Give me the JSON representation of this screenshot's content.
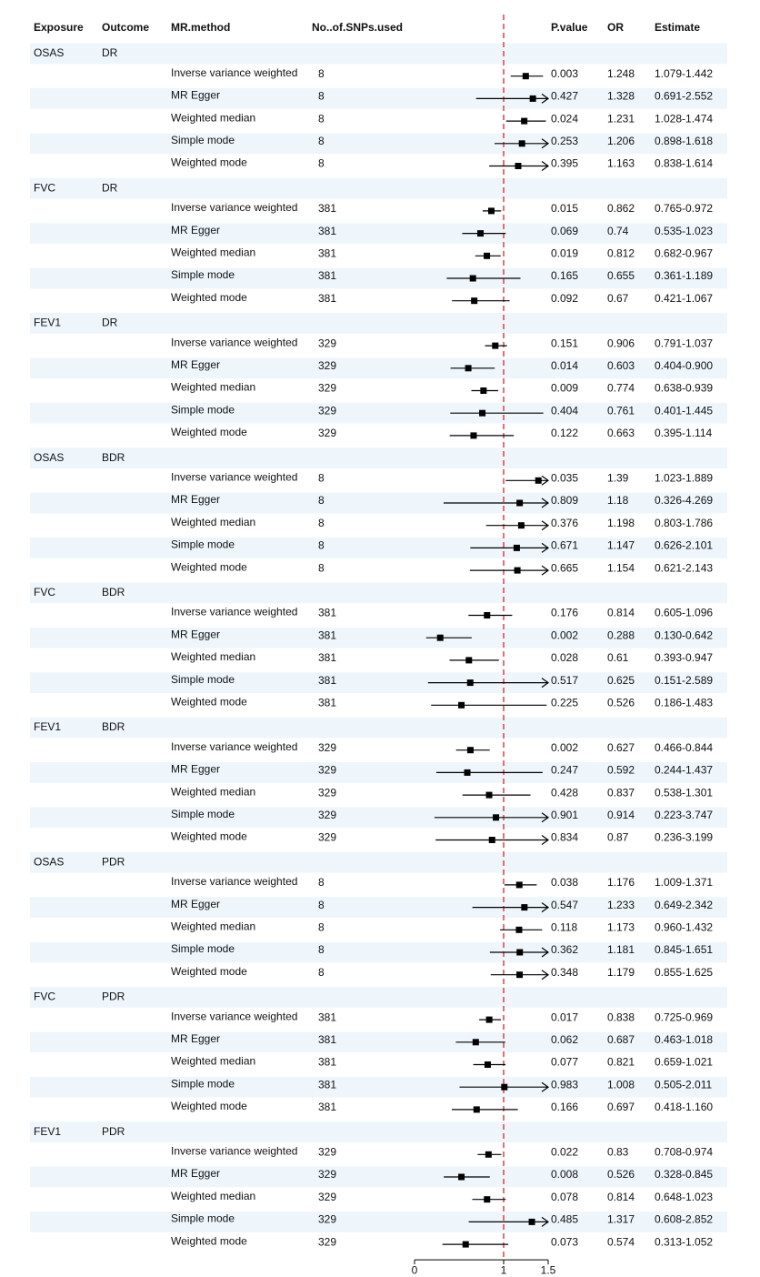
{
  "chart_data": {
    "type": "forest",
    "columns": [
      "Exposure",
      "Outcome",
      "MR.method",
      "No..of.SNPs.used",
      "P.value",
      "OR",
      "Estimate"
    ],
    "axis": {
      "xlim": [
        0,
        1.5
      ],
      "ticks": [
        0,
        1,
        1.5
      ],
      "tick_labels": [
        "0",
        "1",
        "1.5"
      ],
      "reference_line": 1
    },
    "groups": [
      {
        "exposure": "OSAS",
        "outcome": "DR",
        "rows": [
          {
            "method": "Inverse variance weighted",
            "snps": "8",
            "p": "0.003",
            "or": 1.248,
            "ci": "1.079-1.442",
            "lo": 1.079,
            "hi": 1.442
          },
          {
            "method": "MR Egger",
            "snps": "8",
            "p": "0.427",
            "or": 1.328,
            "ci": "0.691-2.552",
            "lo": 0.691,
            "hi": 2.552
          },
          {
            "method": "Weighted median",
            "snps": "8",
            "p": "0.024",
            "or": 1.231,
            "ci": "1.028-1.474",
            "lo": 1.028,
            "hi": 1.474
          },
          {
            "method": "Simple mode",
            "snps": "8",
            "p": "0.253",
            "or": 1.206,
            "ci": "0.898-1.618",
            "lo": 0.898,
            "hi": 1.618
          },
          {
            "method": "Weighted mode",
            "snps": "8",
            "p": "0.395",
            "or": 1.163,
            "ci": "0.838-1.614",
            "lo": 0.838,
            "hi": 1.614
          }
        ]
      },
      {
        "exposure": "FVC",
        "outcome": "DR",
        "rows": [
          {
            "method": "Inverse variance weighted",
            "snps": "381",
            "p": "0.015",
            "or": 0.862,
            "ci": "0.765-0.972",
            "lo": 0.765,
            "hi": 0.972
          },
          {
            "method": "MR Egger",
            "snps": "381",
            "p": "0.069",
            "or": 0.74,
            "ci": "0.535-1.023",
            "lo": 0.535,
            "hi": 1.023
          },
          {
            "method": "Weighted median",
            "snps": "381",
            "p": "0.019",
            "or": 0.812,
            "ci": "0.682-0.967",
            "lo": 0.682,
            "hi": 0.967
          },
          {
            "method": "Simple mode",
            "snps": "381",
            "p": "0.165",
            "or": 0.655,
            "ci": "0.361-1.189",
            "lo": 0.361,
            "hi": 1.189
          },
          {
            "method": "Weighted mode",
            "snps": "381",
            "p": "0.092",
            "or": 0.67,
            "ci": "0.421-1.067",
            "lo": 0.421,
            "hi": 1.067
          }
        ]
      },
      {
        "exposure": "FEV1",
        "outcome": "DR",
        "rows": [
          {
            "method": "Inverse variance weighted",
            "snps": "329",
            "p": "0.151",
            "or": 0.906,
            "ci": "0.791-1.037",
            "lo": 0.791,
            "hi": 1.037
          },
          {
            "method": "MR Egger",
            "snps": "329",
            "p": "0.014",
            "or": 0.603,
            "ci": "0.404-0.900",
            "lo": 0.404,
            "hi": 0.9
          },
          {
            "method": "Weighted median",
            "snps": "329",
            "p": "0.009",
            "or": 0.774,
            "ci": "0.638-0.939",
            "lo": 0.638,
            "hi": 0.939
          },
          {
            "method": "Simple mode",
            "snps": "329",
            "p": "0.404",
            "or": 0.761,
            "ci": "0.401-1.445",
            "lo": 0.401,
            "hi": 1.445
          },
          {
            "method": "Weighted mode",
            "snps": "329",
            "p": "0.122",
            "or": 0.663,
            "ci": "0.395-1.114",
            "lo": 0.395,
            "hi": 1.114
          }
        ]
      },
      {
        "exposure": "OSAS",
        "outcome": "BDR",
        "rows": [
          {
            "method": "Inverse variance weighted",
            "snps": "8",
            "p": "0.035",
            "or": 1.39,
            "ci": "1.023-1.889",
            "lo": 1.023,
            "hi": 1.889
          },
          {
            "method": "MR Egger",
            "snps": "8",
            "p": "0.809",
            "or": 1.18,
            "ci": "0.326-4.269",
            "lo": 0.326,
            "hi": 4.269
          },
          {
            "method": "Weighted median",
            "snps": "8",
            "p": "0.376",
            "or": 1.198,
            "ci": "0.803-1.786",
            "lo": 0.803,
            "hi": 1.786
          },
          {
            "method": "Simple mode",
            "snps": "8",
            "p": "0.671",
            "or": 1.147,
            "ci": "0.626-2.101",
            "lo": 0.626,
            "hi": 2.101
          },
          {
            "method": "Weighted mode",
            "snps": "8",
            "p": "0.665",
            "or": 1.154,
            "ci": "0.621-2.143",
            "lo": 0.621,
            "hi": 2.143
          }
        ]
      },
      {
        "exposure": "FVC",
        "outcome": "BDR",
        "rows": [
          {
            "method": "Inverse variance weighted",
            "snps": "381",
            "p": "0.176",
            "or": 0.814,
            "ci": "0.605-1.096",
            "lo": 0.605,
            "hi": 1.096
          },
          {
            "method": "MR Egger",
            "snps": "381",
            "p": "0.002",
            "or": 0.288,
            "ci": "0.130-0.642",
            "lo": 0.13,
            "hi": 0.642
          },
          {
            "method": "Weighted median",
            "snps": "381",
            "p": "0.028",
            "or": 0.61,
            "ci": "0.393-0.947",
            "lo": 0.393,
            "hi": 0.947
          },
          {
            "method": "Simple mode",
            "snps": "381",
            "p": "0.517",
            "or": 0.625,
            "ci": "0.151-2.589",
            "lo": 0.151,
            "hi": 2.589
          },
          {
            "method": "Weighted mode",
            "snps": "381",
            "p": "0.225",
            "or": 0.526,
            "ci": "0.186-1.483",
            "lo": 0.186,
            "hi": 1.483
          }
        ]
      },
      {
        "exposure": "FEV1",
        "outcome": "BDR",
        "rows": [
          {
            "method": "Inverse variance weighted",
            "snps": "329",
            "p": "0.002",
            "or": 0.627,
            "ci": "0.466-0.844",
            "lo": 0.466,
            "hi": 0.844
          },
          {
            "method": "MR Egger",
            "snps": "329",
            "p": "0.247",
            "or": 0.592,
            "ci": "0.244-1.437",
            "lo": 0.244,
            "hi": 1.437
          },
          {
            "method": "Weighted median",
            "snps": "329",
            "p": "0.428",
            "or": 0.837,
            "ci": "0.538-1.301",
            "lo": 0.538,
            "hi": 1.301
          },
          {
            "method": "Simple mode",
            "snps": "329",
            "p": "0.901",
            "or": 0.914,
            "ci": "0.223-3.747",
            "lo": 0.223,
            "hi": 3.747
          },
          {
            "method": "Weighted mode",
            "snps": "329",
            "p": "0.834",
            "or": 0.87,
            "ci": "0.236-3.199",
            "lo": 0.236,
            "hi": 3.199
          }
        ]
      },
      {
        "exposure": "OSAS",
        "outcome": "PDR",
        "rows": [
          {
            "method": "Inverse variance weighted",
            "snps": "8",
            "p": "0.038",
            "or": 1.176,
            "ci": "1.009-1.371",
            "lo": 1.009,
            "hi": 1.371
          },
          {
            "method": "MR Egger",
            "snps": "8",
            "p": "0.547",
            "or": 1.233,
            "ci": "0.649-2.342",
            "lo": 0.649,
            "hi": 2.342
          },
          {
            "method": "Weighted median",
            "snps": "8",
            "p": "0.118",
            "or": 1.173,
            "ci": "0.960-1.432",
            "lo": 0.96,
            "hi": 1.432
          },
          {
            "method": "Simple mode",
            "snps": "8",
            "p": "0.362",
            "or": 1.181,
            "ci": "0.845-1.651",
            "lo": 0.845,
            "hi": 1.651
          },
          {
            "method": "Weighted mode",
            "snps": "8",
            "p": "0.348",
            "or": 1.179,
            "ci": "0.855-1.625",
            "lo": 0.855,
            "hi": 1.625
          }
        ]
      },
      {
        "exposure": "FVC",
        "outcome": "PDR",
        "rows": [
          {
            "method": "Inverse variance weighted",
            "snps": "381",
            "p": "0.017",
            "or": 0.838,
            "ci": "0.725-0.969",
            "lo": 0.725,
            "hi": 0.969
          },
          {
            "method": "MR Egger",
            "snps": "381",
            "p": "0.062",
            "or": 0.687,
            "ci": "0.463-1.018",
            "lo": 0.463,
            "hi": 1.018
          },
          {
            "method": "Weighted median",
            "snps": "381",
            "p": "0.077",
            "or": 0.821,
            "ci": "0.659-1.021",
            "lo": 0.659,
            "hi": 1.021
          },
          {
            "method": "Simple mode",
            "snps": "381",
            "p": "0.983",
            "or": 1.008,
            "ci": "0.505-2.011",
            "lo": 0.505,
            "hi": 2.011
          },
          {
            "method": "Weighted mode",
            "snps": "381",
            "p": "0.166",
            "or": 0.697,
            "ci": "0.418-1.160",
            "lo": 0.418,
            "hi": 1.16
          }
        ]
      },
      {
        "exposure": "FEV1",
        "outcome": "PDR",
        "rows": [
          {
            "method": "Inverse variance weighted",
            "snps": "329",
            "p": "0.022",
            "or": 0.83,
            "ci": "0.708-0.974",
            "lo": 0.708,
            "hi": 0.974
          },
          {
            "method": "MR Egger",
            "snps": "329",
            "p": "0.008",
            "or": 0.526,
            "ci": "0.328-0.845",
            "lo": 0.328,
            "hi": 0.845
          },
          {
            "method": "Weighted median",
            "snps": "329",
            "p": "0.078",
            "or": 0.814,
            "ci": "0.648-1.023",
            "lo": 0.648,
            "hi": 1.023
          },
          {
            "method": "Simple mode",
            "snps": "329",
            "p": "0.485",
            "or": 1.317,
            "ci": "0.608-2.852",
            "lo": 0.608,
            "hi": 2.852
          },
          {
            "method": "Weighted mode",
            "snps": "329",
            "p": "0.073",
            "or": 0.574,
            "ci": "0.313-1.052",
            "lo": 0.313,
            "hi": 1.052
          }
        ]
      }
    ]
  },
  "colors": {
    "stripe": "#eef6fc",
    "reference_line": "#d62728",
    "mark": "#000000"
  }
}
